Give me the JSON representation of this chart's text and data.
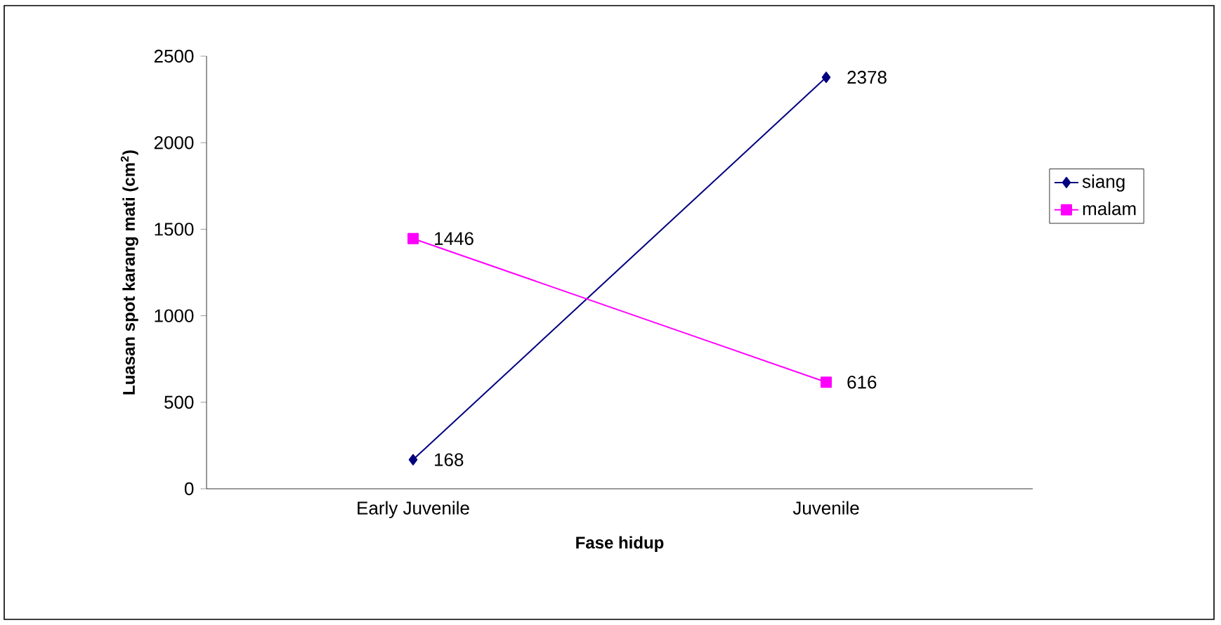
{
  "chart_data": {
    "type": "line",
    "xlabel": "Fase hidup",
    "ylabel": "Luasan spot karang mati (cm$^{2}$)",
    "categories": [
      "Early Juvenile",
      "Juvenile"
    ],
    "series": [
      {
        "name": "siang",
        "color": "#000080",
        "values": [
          168,
          2378
        ],
        "marker": "diamond"
      },
      {
        "name": "malam",
        "color": "#ff00ff",
        "values": [
          1446,
          616
        ],
        "marker": "square"
      }
    ],
    "ylim": [
      0,
      2500
    ],
    "yticks": [
      0,
      500,
      1000,
      1500,
      2000,
      2500
    ],
    "grid": false,
    "legend": "right",
    "data_labels": true,
    "line_style": "solid"
  }
}
